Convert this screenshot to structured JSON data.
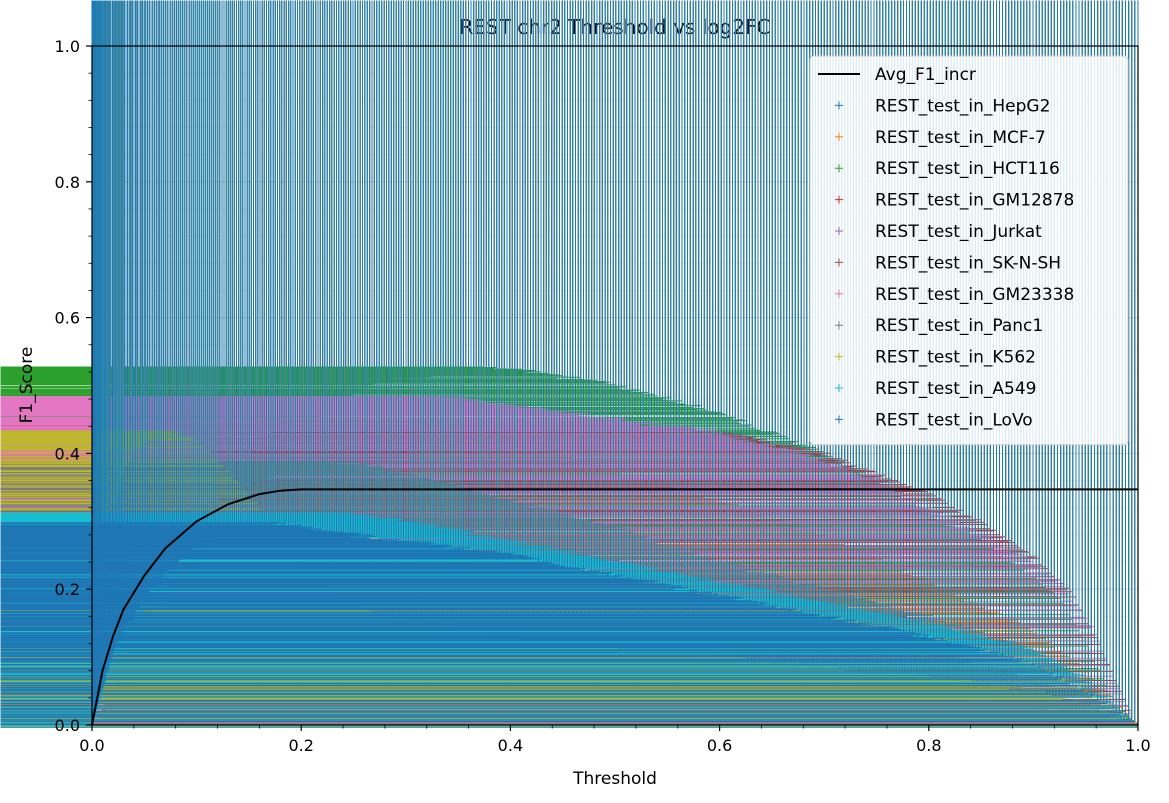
{
  "chart_data": {
    "type": "scatter",
    "title": "REST chr2 Threshold vs log2FC",
    "xlabel": "Threshold",
    "ylabel": "F1_Score",
    "xlim": [
      0,
      1
    ],
    "ylim": [
      0,
      1
    ],
    "xticks": [
      "0.0",
      "0.2",
      "0.4",
      "0.6",
      "0.8",
      "1.0"
    ],
    "yticks": [
      "0.0",
      "0.2",
      "0.4",
      "0.6",
      "0.8",
      "1.0"
    ],
    "grid": true,
    "legend_position": "top-right",
    "line": {
      "name": "Avg_F1_incr",
      "color": "#000000",
      "x": [
        0,
        0.01,
        0.02,
        0.03,
        0.05,
        0.07,
        0.1,
        0.13,
        0.16,
        0.18,
        0.2,
        1.0
      ],
      "y": [
        0,
        0.08,
        0.13,
        0.17,
        0.22,
        0.26,
        0.3,
        0.325,
        0.34,
        0.345,
        0.347,
        0.347
      ]
    },
    "series": [
      {
        "name": "REST_test_in_HepG2",
        "color": "#1f77b4",
        "x": [
          0,
          0.02,
          0.05,
          0.08,
          0.1,
          0.12,
          0.15,
          0.18,
          0.22,
          0.26,
          0.3,
          0.4,
          0.5,
          0.6,
          0.7,
          0.8,
          0.9,
          0.95,
          1.0
        ],
        "y": [
          0,
          0.15,
          0.27,
          0.34,
          0.38,
          0.41,
          0.425,
          0.42,
          0.39,
          0.34,
          0.305,
          0.27,
          0.24,
          0.21,
          0.18,
          0.15,
          0.11,
          0.06,
          0.0
        ]
      },
      {
        "name": "REST_test_in_MCF-7",
        "color": "#ff7f0e",
        "x": [
          0,
          0.02,
          0.05,
          0.08,
          0.1,
          0.12,
          0.15,
          0.18,
          0.2,
          0.23,
          0.26,
          0.3,
          0.35,
          0.4,
          0.5,
          0.6,
          0.7,
          0.8,
          0.9,
          0.95,
          1.0
        ],
        "y": [
          0,
          0.08,
          0.17,
          0.24,
          0.29,
          0.33,
          0.37,
          0.41,
          0.43,
          0.44,
          0.45,
          0.45,
          0.44,
          0.42,
          0.37,
          0.33,
          0.28,
          0.21,
          0.14,
          0.08,
          0.0
        ]
      },
      {
        "name": "REST_test_in_HCT116",
        "color": "#2ca02c",
        "x": [
          0,
          0.02,
          0.05,
          0.08,
          0.1,
          0.12,
          0.15,
          0.18,
          0.2,
          0.23,
          0.26,
          0.3,
          0.36,
          0.42,
          0.5,
          0.6,
          0.7,
          0.75,
          0.8,
          0.85,
          0.9,
          0.93,
          0.96,
          0.98,
          1.0
        ],
        "y": [
          0,
          0.05,
          0.08,
          0.1,
          0.13,
          0.18,
          0.26,
          0.37,
          0.43,
          0.47,
          0.5,
          0.51,
          0.525,
          0.52,
          0.5,
          0.46,
          0.4,
          0.36,
          0.31,
          0.27,
          0.22,
          0.18,
          0.09,
          0.03,
          0.0
        ]
      },
      {
        "name": "REST_test_in_GM12878",
        "color": "#d62728",
        "x": [
          0,
          0.02,
          0.05,
          0.08,
          0.1,
          0.12,
          0.15,
          0.18,
          0.2,
          0.22,
          0.25,
          0.3,
          0.35,
          0.4,
          0.45,
          0.5,
          0.6,
          0.7,
          0.75,
          0.8,
          0.85,
          0.9,
          0.94,
          0.97,
          1.0
        ],
        "y": [
          0,
          0.04,
          0.07,
          0.11,
          0.14,
          0.17,
          0.2,
          0.24,
          0.28,
          0.32,
          0.36,
          0.4,
          0.42,
          0.43,
          0.44,
          0.44,
          0.43,
          0.4,
          0.37,
          0.34,
          0.3,
          0.25,
          0.19,
          0.1,
          0.0
        ]
      },
      {
        "name": "REST_test_in_Jurkat",
        "color": "#9467bd",
        "x": [
          0,
          0.005,
          0.01,
          0.02,
          0.03,
          0.04,
          0.05,
          0.06,
          0.07,
          0.08,
          0.1,
          0.12,
          0.15,
          0.18,
          0.2,
          0.23,
          0.26,
          0.3,
          0.4,
          0.5,
          0.6,
          0.7,
          0.8,
          0.9,
          0.95,
          1.0
        ],
        "y": [
          0,
          0.15,
          0.22,
          0.3,
          0.36,
          0.4,
          0.42,
          0.43,
          0.435,
          0.435,
          0.42,
          0.39,
          0.33,
          0.26,
          0.22,
          0.17,
          0.14,
          0.12,
          0.1,
          0.09,
          0.075,
          0.06,
          0.045,
          0.03,
          0.015,
          0.0
        ]
      },
      {
        "name": "REST_test_in_SK-N-SH",
        "color": "#8c564b",
        "x": [
          0,
          0.02,
          0.05,
          0.08,
          0.1,
          0.12,
          0.14,
          0.16,
          0.18,
          0.2,
          0.25,
          0.3,
          0.4,
          0.5,
          0.6,
          0.7,
          0.8,
          0.9,
          0.95,
          1.0
        ],
        "y": [
          0,
          0.12,
          0.22,
          0.29,
          0.32,
          0.34,
          0.345,
          0.34,
          0.33,
          0.3,
          0.26,
          0.24,
          0.22,
          0.2,
          0.17,
          0.14,
          0.11,
          0.07,
          0.04,
          0.0
        ]
      },
      {
        "name": "REST_test_in_GM23338",
        "color": "#e377c2",
        "x": [
          0,
          0.02,
          0.05,
          0.08,
          0.1,
          0.12,
          0.15,
          0.18,
          0.2,
          0.23,
          0.26,
          0.3,
          0.35,
          0.4,
          0.5,
          0.6,
          0.7,
          0.75,
          0.8,
          0.85,
          0.9,
          0.93,
          0.96,
          0.98,
          1.0
        ],
        "y": [
          0,
          0.05,
          0.13,
          0.21,
          0.27,
          0.33,
          0.4,
          0.44,
          0.455,
          0.465,
          0.475,
          0.48,
          0.48,
          0.47,
          0.45,
          0.43,
          0.39,
          0.36,
          0.32,
          0.28,
          0.24,
          0.2,
          0.14,
          0.06,
          0.0
        ]
      },
      {
        "name": "REST_test_in_Panc1",
        "color": "#7f7f7f",
        "x": [
          0,
          0.02,
          0.05,
          0.08,
          0.1,
          0.12,
          0.15,
          0.18,
          0.2,
          0.22,
          0.25,
          0.3,
          0.35,
          0.4,
          0.5,
          0.6,
          0.7,
          0.8,
          0.9,
          0.95,
          1.0
        ],
        "y": [
          0,
          0.1,
          0.2,
          0.27,
          0.3,
          0.33,
          0.355,
          0.37,
          0.38,
          0.385,
          0.385,
          0.37,
          0.35,
          0.33,
          0.29,
          0.24,
          0.2,
          0.16,
          0.11,
          0.06,
          0.0
        ]
      },
      {
        "name": "REST_test_in_K562",
        "color": "#bcbd22",
        "x": [
          0,
          0.005,
          0.01,
          0.02,
          0.03,
          0.04,
          0.05,
          0.06,
          0.07,
          0.08,
          0.1,
          0.12,
          0.15,
          0.18,
          0.2,
          0.23,
          0.26,
          0.3,
          0.4,
          0.5,
          0.6,
          0.7,
          0.8,
          0.9,
          0.95,
          1.0
        ],
        "y": [
          0,
          0.16,
          0.23,
          0.31,
          0.37,
          0.4,
          0.415,
          0.425,
          0.43,
          0.43,
          0.42,
          0.39,
          0.34,
          0.28,
          0.24,
          0.2,
          0.17,
          0.15,
          0.125,
          0.11,
          0.1,
          0.085,
          0.07,
          0.05,
          0.03,
          0.0
        ]
      },
      {
        "name": "REST_test_in_A549",
        "color": "#17becf",
        "x": [
          0,
          0.02,
          0.05,
          0.08,
          0.1,
          0.12,
          0.15,
          0.18,
          0.2,
          0.22,
          0.25,
          0.3,
          0.4,
          0.5,
          0.6,
          0.7,
          0.8,
          0.9,
          0.95,
          1.0
        ],
        "y": [
          0,
          0.1,
          0.17,
          0.21,
          0.24,
          0.26,
          0.28,
          0.295,
          0.305,
          0.31,
          0.31,
          0.3,
          0.27,
          0.24,
          0.21,
          0.18,
          0.15,
          0.11,
          0.07,
          0.0
        ]
      },
      {
        "name": "REST_test_in_LoVo",
        "color": "#1f77b4",
        "x": [
          0,
          0.02,
          0.05,
          0.08,
          0.1,
          0.12,
          0.15,
          0.18,
          0.2,
          0.25,
          0.3,
          0.4,
          0.5,
          0.6,
          0.7,
          0.8,
          0.9,
          0.95,
          1.0
        ],
        "y": [
          0,
          0.11,
          0.19,
          0.24,
          0.265,
          0.28,
          0.29,
          0.295,
          0.29,
          0.28,
          0.27,
          0.25,
          0.22,
          0.19,
          0.16,
          0.13,
          0.09,
          0.05,
          0.0
        ]
      }
    ]
  }
}
